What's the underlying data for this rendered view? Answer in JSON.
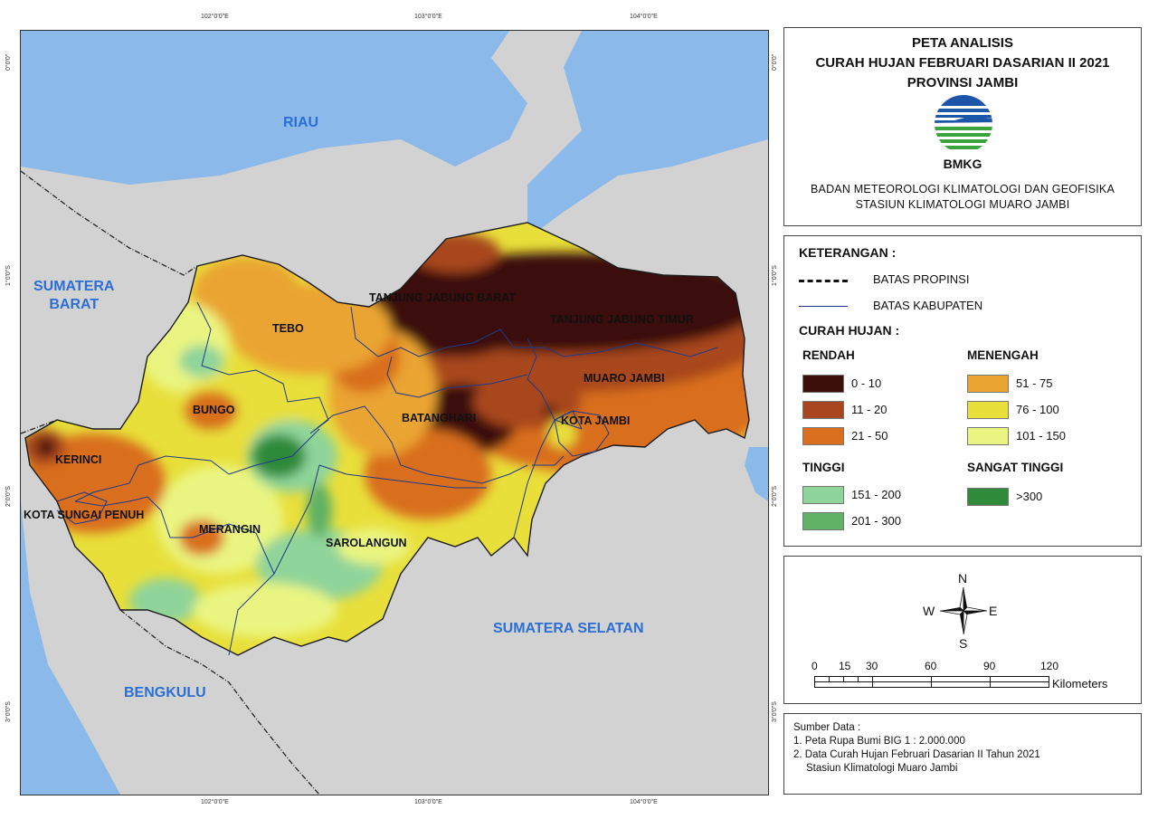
{
  "map": {
    "graticule": {
      "top": [
        "102°0'0\"E",
        "103°0'0\"E",
        "104°0'0\"E"
      ],
      "bottom": [
        "102°0'0\"E",
        "103°0'0\"E",
        "104°0'0\"E"
      ],
      "left": [
        "0°0'0\"",
        "1°0'0\"S",
        "2°0'0\"S",
        "3°0'0\"S"
      ],
      "right": [
        "0°0'0\"",
        "1°0'0\"S",
        "2°0'0\"S",
        "3°0'0\"S"
      ]
    },
    "neighbors": {
      "riau": "RIAU",
      "sumbar": "SUMATERA\nBARAT",
      "sumsel": "SUMATERA SELATAN",
      "bengkulu": "BENGKULU"
    },
    "regencies": {
      "tanjab_barat": "TANJUNG JABUNG BARAT",
      "tanjab_timur": "TANJUNG JABUNG TIMUR",
      "tebo": "TEBO",
      "muaro_jambi": "MUARO JAMBI",
      "bungo": "BUNGO",
      "batanghari": "BATANGHARI",
      "kota_jambi": "KOTA JAMBI",
      "kerinci": "KERINCI",
      "kota_sungai_penuh": "KOTA SUNGAI PENUH",
      "merangin": "MERANGIN",
      "sarolangun": "SAROLANGUN"
    },
    "colors": {
      "sea": "#8ab9ea",
      "land": "#d2d2d2",
      "c0_10": "#3b1009",
      "c11_20": "#a8461f",
      "c21_50": "#d96e1f",
      "c51_75": "#eaa431",
      "c76_100": "#e8df3a",
      "c101_150": "#eaf581",
      "c151_200": "#8fd49a",
      "c201_300": "#5fb166",
      "c300": "#2f8a3a"
    }
  },
  "title": {
    "line1": "PETA ANALISIS",
    "line2": "CURAH HUJAN FEBRUARI DASARIAN II 2021",
    "line3": "PROVINSI JAMBI",
    "logo_text": "BMKG",
    "agency1": "BADAN METEOROLOGI KLIMATOLOGI DAN GEOFISIKA",
    "agency2": "STASIUN KLIMATOLOGI MUARO JAMBI"
  },
  "legend": {
    "heading": "KETERANGAN :",
    "batas_propinsi": "BATAS PROPINSI",
    "batas_kabupaten": "BATAS KABUPATEN",
    "curah_hujan": "CURAH HUJAN :",
    "groups": {
      "rendah": "RENDAH",
      "menengah": "MENENGAH",
      "tinggi": "TINGGI",
      "sangat_tinggi": "SANGAT TINGGI"
    },
    "classes": {
      "c0_10": "0 - 10",
      "c11_20": "11 - 20",
      "c21_50": "21 - 50",
      "c51_75": "51 - 75",
      "c76_100": "76 - 100",
      "c101_150": "101 - 150",
      "c151_200": "151 - 200",
      "c201_300": "201 - 300",
      "c300": ">300"
    }
  },
  "compass": {
    "n": "N",
    "s": "S",
    "e": "E",
    "w": "W"
  },
  "scalebar": {
    "ticks": [
      "0",
      "15",
      "30",
      "60",
      "90",
      "120"
    ],
    "unit": "Kilometers"
  },
  "source": {
    "heading": "Sumber Data :",
    "item1": "1. Peta Rupa Bumi BIG 1 : 2.000.000",
    "item2": "2. Data Curah Hujan Februari Dasarian II Tahun 2021",
    "item2b": "Stasiun Klimatologi Muaro Jambi"
  }
}
